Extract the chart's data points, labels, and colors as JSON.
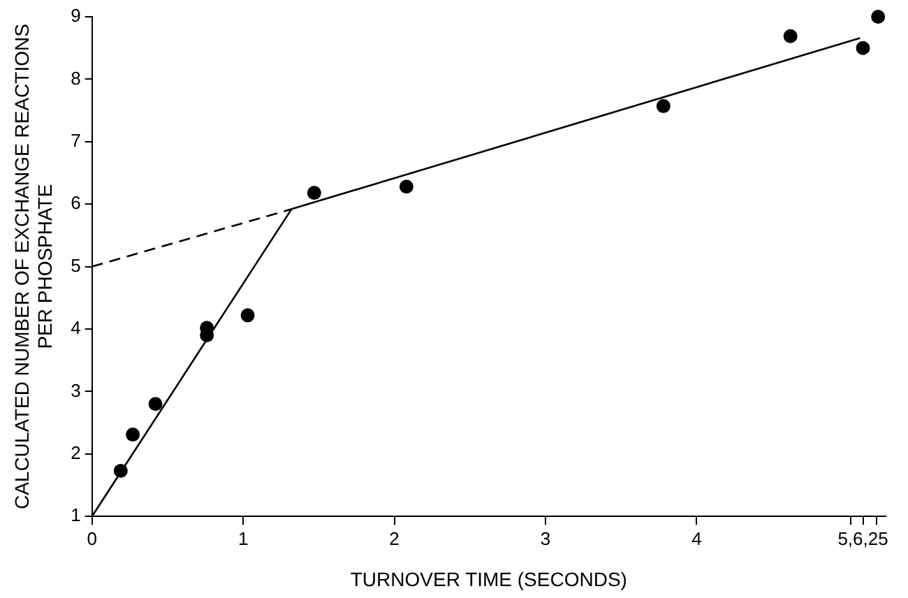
{
  "chart_data": {
    "type": "scatter",
    "xlabel": "TURNOVER TIME (SECONDS)",
    "ylabel": "CALCULATED NUMBER OF EXCHANGE REACTIONS\nPER PHOSPHATE",
    "xlim": [
      0,
      5.25
    ],
    "ylim": [
      1,
      9
    ],
    "xticks": [
      0,
      1,
      2,
      3,
      4,
      {
        "value": 5.02,
        "label": null
      },
      {
        "value": 5.1,
        "label": "5,6,25"
      },
      {
        "value": 5.19,
        "label": null
      }
    ],
    "yticks": [
      1,
      2,
      3,
      4,
      5,
      6,
      7,
      8,
      9
    ],
    "grid": false,
    "legend": false,
    "series": [
      {
        "color": "#000000",
        "marker": "circle",
        "x": [
          0.19,
          0.27,
          0.42,
          0.76,
          0.76,
          1.03,
          1.47,
          2.08,
          3.78,
          4.62,
          5.1,
          5.2
        ],
        "values": [
          1.73,
          2.31,
          2.8,
          4.02,
          3.9,
          4.22,
          6.18,
          6.28,
          7.57,
          8.69,
          8.5,
          9.0
        ]
      },
      {
        "type": "line",
        "color": "#000000",
        "marker": "none",
        "line_style": "solid",
        "x": [
          0,
          1.32
        ],
        "values": [
          1,
          5.92
        ]
      },
      {
        "type": "line",
        "color": "#000000",
        "marker": "none",
        "line_style": "solid",
        "x": [
          1.32,
          5.08
        ],
        "values": [
          5.92,
          8.66
        ]
      },
      {
        "type": "line",
        "color": "#000000",
        "marker": "none",
        "line_style": "dashed",
        "x": [
          0,
          1.32
        ],
        "values": [
          5,
          5.92
        ]
      }
    ]
  }
}
